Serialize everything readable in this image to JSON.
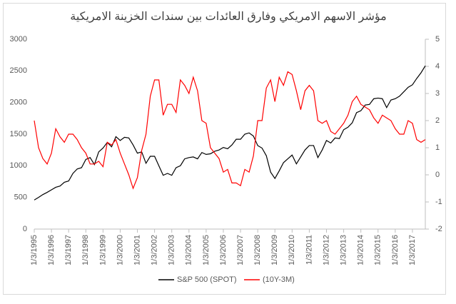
{
  "chart_data": {
    "type": "line",
    "title": "مؤشر الاسهم الامريكي وفارق العائدات بين سندات الخزينة الامريكية",
    "x": [
      1995,
      1995.25,
      1995.5,
      1995.75,
      1996,
      1996.25,
      1996.5,
      1996.75,
      1997,
      1997.25,
      1997.5,
      1997.75,
      1998,
      1998.25,
      1998.5,
      1998.75,
      1999,
      1999.25,
      1999.5,
      1999.75,
      2000,
      2000.25,
      2000.5,
      2000.75,
      2001,
      2001.25,
      2001.5,
      2001.75,
      2002,
      2002.25,
      2002.5,
      2002.75,
      2003,
      2003.25,
      2003.5,
      2003.75,
      2004,
      2004.25,
      2004.5,
      2004.75,
      2005,
      2005.25,
      2005.5,
      2005.75,
      2006,
      2006.25,
      2006.5,
      2006.75,
      2007,
      2007.25,
      2007.5,
      2007.75,
      2008,
      2008.25,
      2008.5,
      2008.75,
      2009,
      2009.25,
      2009.5,
      2009.75,
      2010,
      2010.25,
      2010.5,
      2010.75,
      2011,
      2011.25,
      2011.5,
      2011.75,
      2012,
      2012.25,
      2012.5,
      2012.75,
      2013,
      2013.25,
      2013.5,
      2013.75,
      2014,
      2014.25,
      2014.5,
      2014.75,
      2015,
      2015.25,
      2015.5,
      2015.75,
      2016,
      2016.25,
      2016.5,
      2016.75,
      2017,
      2017.25,
      2017.5,
      2017.75
    ],
    "series": [
      {
        "name": "S&P 500 (SPOT)",
        "color": "#000000",
        "values": [
          460,
          500,
          545,
          580,
          620,
          660,
          680,
          740,
          760,
          880,
          950,
          970,
          1100,
          1130,
          1020,
          1220,
          1280,
          1370,
          1300,
          1460,
          1400,
          1450,
          1440,
          1330,
          1200,
          1220,
          1040,
          1150,
          1150,
          1000,
          850,
          880,
          850,
          970,
          1000,
          1110,
          1130,
          1140,
          1110,
          1210,
          1180,
          1190,
          1230,
          1250,
          1290,
          1270,
          1330,
          1420,
          1420,
          1500,
          1520,
          1470,
          1320,
          1280,
          1160,
          900,
          800,
          920,
          1050,
          1110,
          1170,
          1030,
          1140,
          1250,
          1320,
          1320,
          1130,
          1250,
          1400,
          1360,
          1440,
          1430,
          1570,
          1610,
          1680,
          1840,
          1870,
          1960,
          1970,
          2060,
          2070,
          2060,
          1920,
          2040,
          2060,
          2100,
          2170,
          2240,
          2280,
          2380,
          2470,
          2580
        ]
      },
      {
        "name": "(10Y-3M)",
        "color": "#ff0000",
        "axis": "y2",
        "values": [
          2.0,
          1.0,
          0.6,
          0.4,
          0.8,
          1.7,
          1.4,
          1.2,
          1.5,
          1.5,
          1.3,
          1.0,
          0.8,
          0.4,
          0.4,
          0.5,
          0.3,
          1.2,
          1.1,
          1.3,
          0.8,
          0.4,
          0,
          -0.5,
          -0.1,
          0.9,
          1.5,
          2.9,
          3.5,
          3.5,
          2.2,
          2.6,
          2.6,
          2.3,
          3.5,
          3.3,
          3.0,
          3.6,
          3.1,
          2.0,
          1.9,
          1.0,
          0.8,
          0.6,
          0.1,
          0.2,
          -0.3,
          -0.3,
          -0.4,
          0.2,
          0.1,
          0.7,
          2.0,
          2.0,
          3.2,
          3.5,
          2.7,
          3.6,
          3.3,
          3.8,
          3.7,
          3.1,
          2.4,
          3.1,
          3.3,
          3.1,
          2.0,
          1.9,
          2.0,
          1.6,
          1.5,
          1.7,
          1.9,
          2.2,
          2.7,
          2.9,
          2.6,
          2.5,
          2.4,
          2.1,
          1.9,
          2.2,
          2.1,
          2.0,
          1.7,
          1.5,
          1.5,
          2.0,
          1.9,
          1.3,
          1.2,
          1.3
        ]
      }
    ],
    "xlim": [
      1995,
      2017.75
    ],
    "xticks": [
      {
        "value": 1995,
        "label": "1/3/1995"
      },
      {
        "value": 1996,
        "label": "1/3/1996"
      },
      {
        "value": 1997,
        "label": "1/3/1997"
      },
      {
        "value": 1998,
        "label": "1/3/1998"
      },
      {
        "value": 1999,
        "label": "1/3/1999"
      },
      {
        "value": 2000,
        "label": "1/3/2000"
      },
      {
        "value": 2001,
        "label": "1/3/2001"
      },
      {
        "value": 2002,
        "label": "1/3/2002"
      },
      {
        "value": 2003,
        "label": "1/3/2003"
      },
      {
        "value": 2004,
        "label": "1/3/2004"
      },
      {
        "value": 2005,
        "label": "1/3/2005"
      },
      {
        "value": 2006,
        "label": "1/3/2006"
      },
      {
        "value": 2007,
        "label": "1/3/2007"
      },
      {
        "value": 2008,
        "label": "1/3/2008"
      },
      {
        "value": 2009,
        "label": "1/3/2009"
      },
      {
        "value": 2010,
        "label": "1/3/2010"
      },
      {
        "value": 2011,
        "label": "1/3/2011"
      },
      {
        "value": 2012,
        "label": "1/3/2012"
      },
      {
        "value": 2013,
        "label": "1/3/2013"
      },
      {
        "value": 2014,
        "label": "1/3/2014"
      },
      {
        "value": 2015,
        "label": "1/3/2015"
      },
      {
        "value": 2016,
        "label": "1/3/2016"
      },
      {
        "value": 2017,
        "label": "1/3/2017"
      }
    ],
    "ylim": [
      0,
      3000
    ],
    "yticks": [
      0,
      500,
      1000,
      1500,
      2000,
      2500,
      3000
    ],
    "y2lim": [
      -2,
      5
    ],
    "y2ticks": [
      -2,
      -1,
      0,
      1,
      2,
      3,
      4,
      5
    ],
    "legend": "bottom"
  }
}
